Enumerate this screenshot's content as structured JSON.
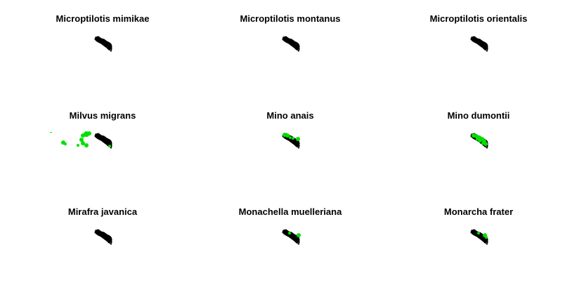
{
  "panels": [
    {
      "title": "Microptilotis mimikae",
      "occurrence_color": "#00e000",
      "occurrences": "none"
    },
    {
      "title": "Microptilotis montanus",
      "occurrence_color": "#00e000",
      "occurrences": "none"
    },
    {
      "title": "Microptilotis orientalis",
      "occurrence_color": "#00e000",
      "occurrences": "none"
    },
    {
      "title": "Milvus migrans",
      "occurrence_color": "#00e000",
      "occurrences": "widespread"
    },
    {
      "title": "Mino anais",
      "occurrence_color": "#00e000",
      "occurrences": "north-coast"
    },
    {
      "title": "Mino dumontii",
      "occurrence_color": "#00e000",
      "occurrences": "island-wide"
    },
    {
      "title": "Mirafra javanica",
      "occurrence_color": "#00e000",
      "occurrences": "none"
    },
    {
      "title": "Monachella muelleriana",
      "occurrence_color": "#00e000",
      "occurrences": "central-east"
    },
    {
      "title": "Monarcha frater",
      "occurrence_color": "#00e000",
      "occurrences": "east"
    }
  ],
  "colors": {
    "background": "#ffffff",
    "outline": "#000000",
    "occurrence": "#00e000"
  }
}
